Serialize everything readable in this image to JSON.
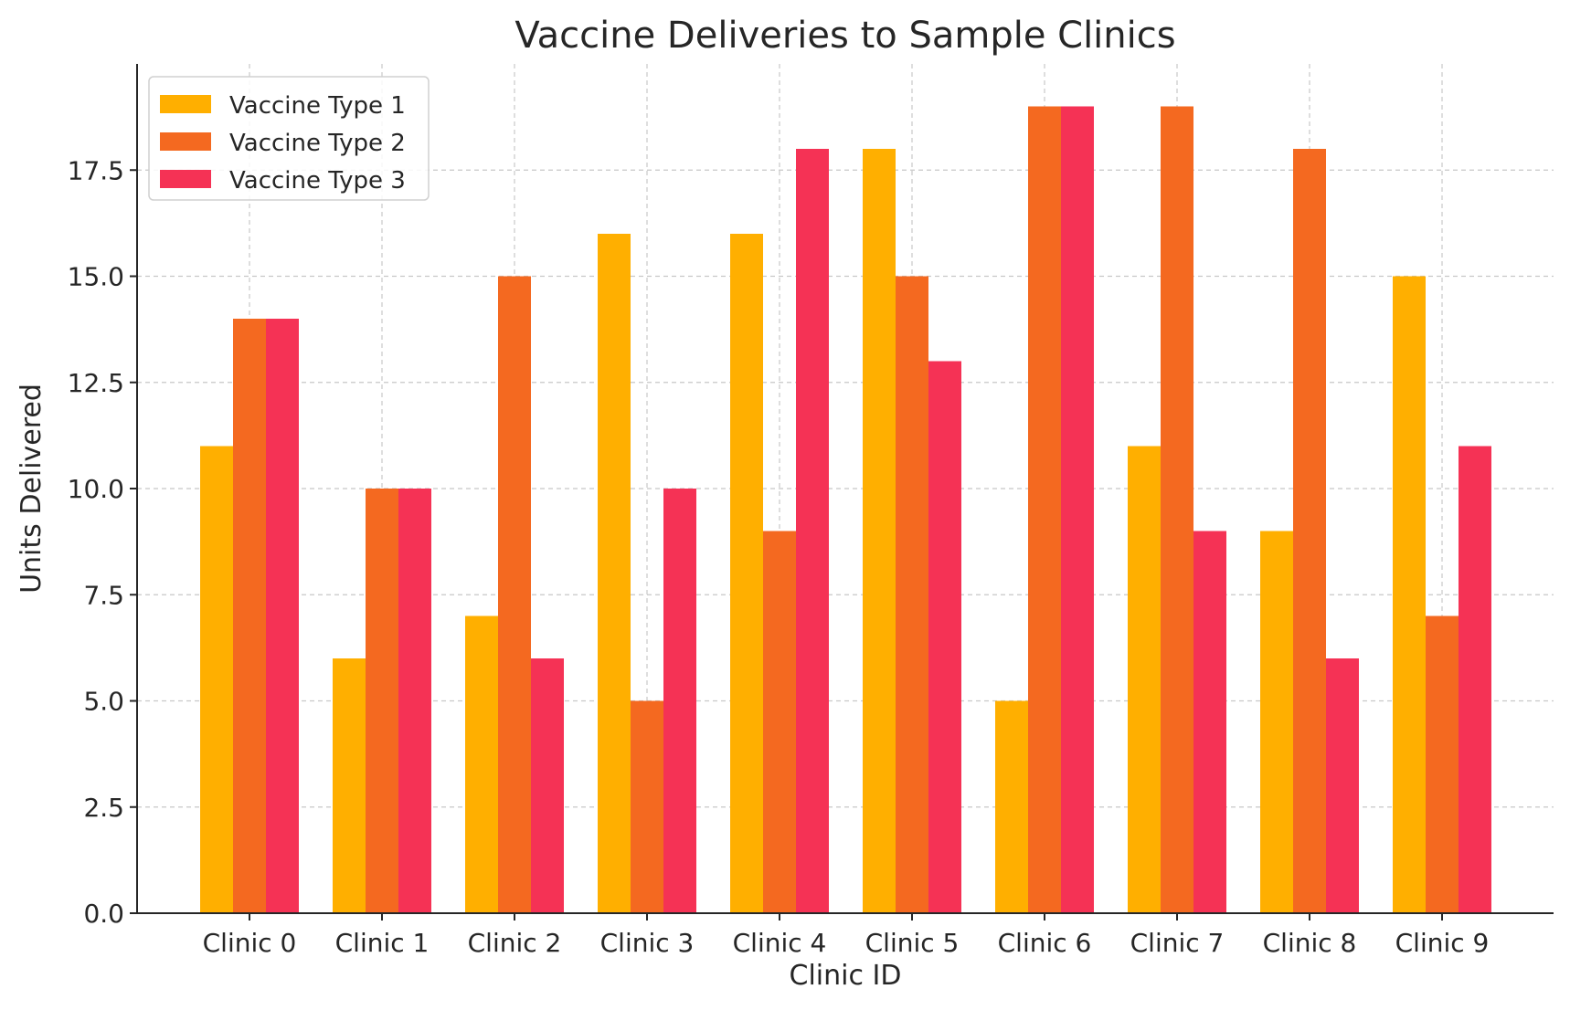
{
  "chart_data": {
    "type": "bar",
    "title": "Vaccine Deliveries to Sample Clinics",
    "xlabel": "Clinic ID",
    "ylabel": "Units Delivered",
    "categories": [
      "Clinic 0",
      "Clinic 1",
      "Clinic 2",
      "Clinic 3",
      "Clinic 4",
      "Clinic 5",
      "Clinic 6",
      "Clinic 7",
      "Clinic 8",
      "Clinic 9"
    ],
    "series": [
      {
        "name": "Vaccine Type 1",
        "color": "#FFAF00",
        "values": [
          11,
          6,
          7,
          16,
          16,
          18,
          5,
          11,
          9,
          15
        ]
      },
      {
        "name": "Vaccine Type 2",
        "color": "#F46920",
        "values": [
          14,
          10,
          15,
          5,
          9,
          15,
          19,
          19,
          18,
          7
        ]
      },
      {
        "name": "Vaccine Type 3",
        "color": "#F53255",
        "values": [
          14,
          10,
          6,
          10,
          18,
          13,
          19,
          9,
          6,
          11
        ]
      }
    ],
    "ylim": [
      0,
      20
    ],
    "yticks": [
      "0.0",
      "2.5",
      "5.0",
      "7.5",
      "10.0",
      "12.5",
      "15.0",
      "17.5"
    ],
    "grid": true,
    "legend_position": "top-left"
  }
}
